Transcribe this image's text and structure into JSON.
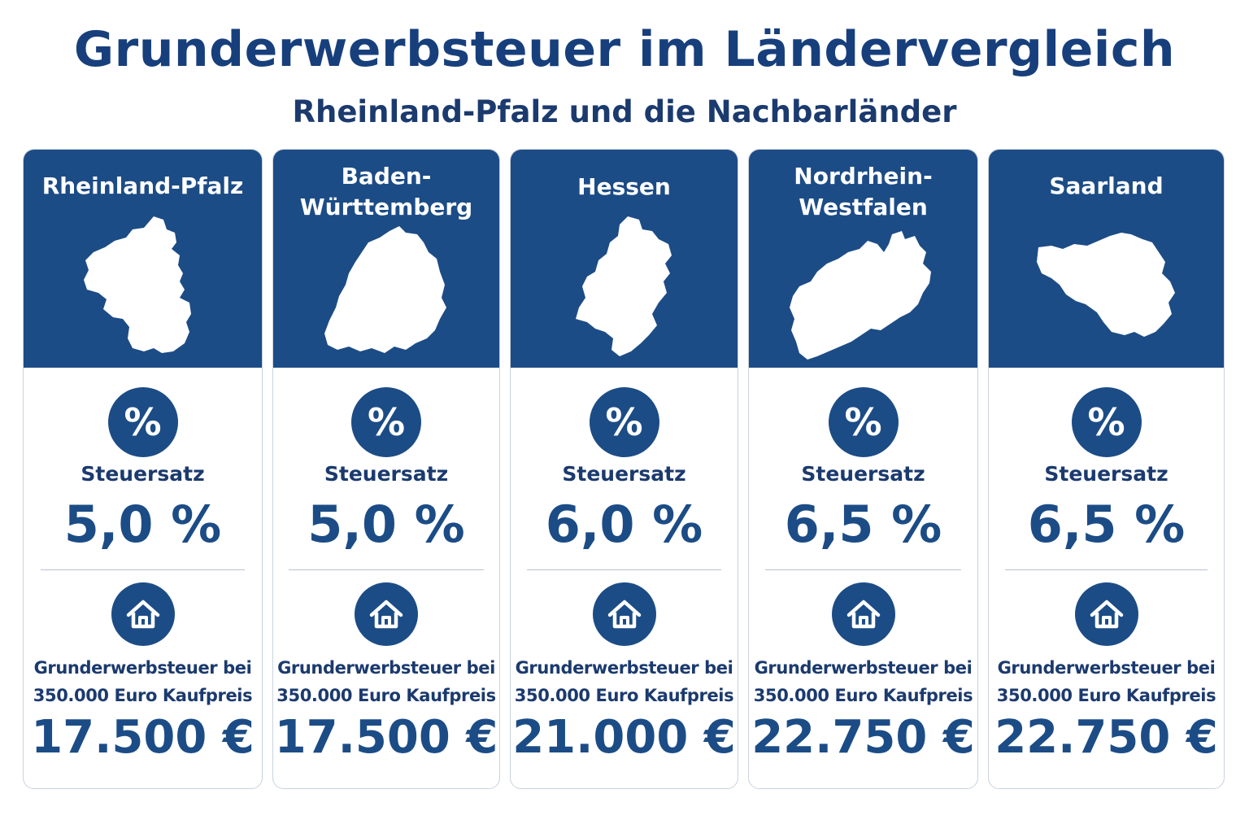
{
  "header": {
    "title": "Grunderwerbsteuer im Ländervergleich",
    "subtitle": "Rheinland-Pfalz und die Nachbarländer"
  },
  "colors": {
    "primary": "#1c4c86",
    "title": "#173f7c",
    "border": "#c9d2df"
  },
  "icons": {
    "rate": "percent-icon",
    "property": "house-icon"
  },
  "states": [
    {
      "name": "Rheinland-Pfalz",
      "rate_label": "Steuersatz",
      "rate_value": "5,0 %",
      "tax_label": "Grunderwerbsteuer bei\n350.000 Euro Kaufpreis",
      "tax_value": "17.500 €"
    },
    {
      "name": "Baden-\nWürttemberg",
      "rate_label": "Steuersatz",
      "rate_value": "5,0 %",
      "tax_label": "Grunderwerbsteuer bei\n350.000 Euro Kaufpreis",
      "tax_value": "17.500 €"
    },
    {
      "name": "Hessen",
      "rate_label": "Steuersatz",
      "rate_value": "6,0 %",
      "tax_label": "Grunderwerbsteuer bei\n350.000 Euro Kaufpreis",
      "tax_value": "21.000 €"
    },
    {
      "name": "Nordrhein-\nWestfalen",
      "rate_label": "Steuersatz",
      "rate_value": "6,5 %",
      "tax_label": "Grunderwerbsteuer bei\n350.000 Euro Kaufpreis",
      "tax_value": "22.750 €"
    },
    {
      "name": "Saarland",
      "rate_label": "Steuersatz",
      "rate_value": "6,5 %",
      "tax_label": "Grunderwerbsteuer bei\n350.000 Euro Kaufpreis",
      "tax_value": "22.750 €"
    }
  ]
}
